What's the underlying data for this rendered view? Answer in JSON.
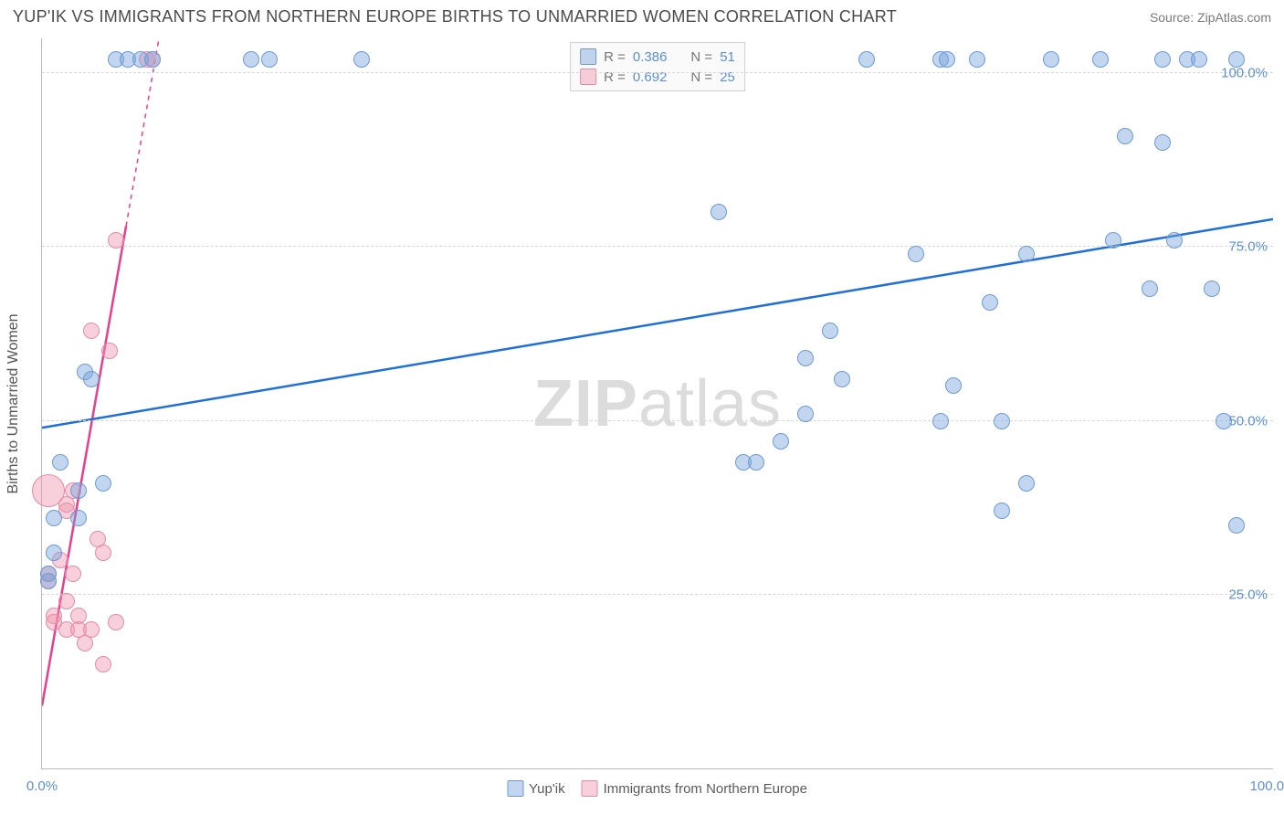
{
  "header": {
    "title": "YUP'IK VS IMMIGRANTS FROM NORTHERN EUROPE BIRTHS TO UNMARRIED WOMEN CORRELATION CHART",
    "source": "Source: ZipAtlas.com"
  },
  "chart": {
    "type": "scatter-with-trendlines",
    "ylabel": "Births to Unmarried Women",
    "watermark_left": "ZIP",
    "watermark_right": "atlas",
    "background_color": "#ffffff",
    "grid_color": "#d8d8d8",
    "axis_color": "#b9b9b9",
    "tick_color": "#5b8fd6",
    "xlim": [
      0,
      100
    ],
    "ylim": [
      0,
      105
    ],
    "xticks": [
      {
        "value": 0,
        "label": "0.0%"
      },
      {
        "value": 100,
        "label": "100.0%"
      }
    ],
    "yticks": [
      {
        "value": 25,
        "label": "25.0%"
      },
      {
        "value": 50,
        "label": "50.0%"
      },
      {
        "value": 75,
        "label": "75.0%"
      },
      {
        "value": 100,
        "label": "100.0%"
      }
    ],
    "legend_top": {
      "series1": {
        "r_label": "R =",
        "r": "0.386",
        "n_label": "N =",
        "n": "51"
      },
      "series2": {
        "r_label": "R =",
        "r": "0.692",
        "n_label": "N =",
        "n": "25"
      }
    },
    "legend_bottom": {
      "s1": "Yup'ik",
      "s2": "Immigrants from Northern Europe"
    },
    "series": {
      "blue": {
        "fill": "rgba(120,165,220,0.45)",
        "stroke": "#6d9ad4",
        "trend_color": "#1e6fd9",
        "trend_width": 2.5,
        "trend": {
          "x1": 0,
          "y1": 49,
          "x2": 100,
          "y2": 79
        },
        "marker_radius": 9,
        "points": [
          {
            "x": 0.5,
            "y": 27
          },
          {
            "x": 0.5,
            "y": 28
          },
          {
            "x": 1,
            "y": 31
          },
          {
            "x": 1,
            "y": 36
          },
          {
            "x": 1.5,
            "y": 44
          },
          {
            "x": 3,
            "y": 36
          },
          {
            "x": 3,
            "y": 40
          },
          {
            "x": 3.5,
            "y": 57
          },
          {
            "x": 4,
            "y": 56
          },
          {
            "x": 5,
            "y": 41
          },
          {
            "x": 6,
            "y": 102
          },
          {
            "x": 7,
            "y": 102
          },
          {
            "x": 8,
            "y": 102
          },
          {
            "x": 9,
            "y": 102
          },
          {
            "x": 17,
            "y": 102
          },
          {
            "x": 18.5,
            "y": 102
          },
          {
            "x": 26,
            "y": 102
          },
          {
            "x": 55,
            "y": 80
          },
          {
            "x": 57,
            "y": 44
          },
          {
            "x": 58,
            "y": 44
          },
          {
            "x": 60,
            "y": 47
          },
          {
            "x": 62,
            "y": 59
          },
          {
            "x": 62,
            "y": 51
          },
          {
            "x": 64,
            "y": 63
          },
          {
            "x": 65,
            "y": 56
          },
          {
            "x": 67,
            "y": 102
          },
          {
            "x": 73,
            "y": 102
          },
          {
            "x": 73.5,
            "y": 102
          },
          {
            "x": 71,
            "y": 74
          },
          {
            "x": 73,
            "y": 50
          },
          {
            "x": 74,
            "y": 55
          },
          {
            "x": 76,
            "y": 102
          },
          {
            "x": 77,
            "y": 67
          },
          {
            "x": 78,
            "y": 50
          },
          {
            "x": 78,
            "y": 37
          },
          {
            "x": 80,
            "y": 74
          },
          {
            "x": 80,
            "y": 41
          },
          {
            "x": 82,
            "y": 102
          },
          {
            "x": 86,
            "y": 102
          },
          {
            "x": 87,
            "y": 76
          },
          {
            "x": 88,
            "y": 91
          },
          {
            "x": 90,
            "y": 69
          },
          {
            "x": 91,
            "y": 90
          },
          {
            "x": 91,
            "y": 102
          },
          {
            "x": 92,
            "y": 76
          },
          {
            "x": 93,
            "y": 102
          },
          {
            "x": 94,
            "y": 102
          },
          {
            "x": 95,
            "y": 69
          },
          {
            "x": 96,
            "y": 50
          },
          {
            "x": 97,
            "y": 102
          },
          {
            "x": 97,
            "y": 35
          }
        ]
      },
      "pink": {
        "fill": "rgba(240,150,175,0.45)",
        "stroke": "#e68aa5",
        "trend_color": "#e83e8c",
        "trend_width": 2.5,
        "trend": {
          "x1": 0,
          "y1": 9,
          "x2": 9.5,
          "y2": 105
        },
        "marker_radius": 9,
        "points": [
          {
            "x": 0.5,
            "y": 28
          },
          {
            "x": 0.5,
            "y": 27
          },
          {
            "x": 0.5,
            "y": 40,
            "r": 18
          },
          {
            "x": 1,
            "y": 22
          },
          {
            "x": 1,
            "y": 21
          },
          {
            "x": 1.5,
            "y": 30
          },
          {
            "x": 2,
            "y": 24
          },
          {
            "x": 2,
            "y": 20
          },
          {
            "x": 2,
            "y": 38
          },
          {
            "x": 2,
            "y": 37
          },
          {
            "x": 2.5,
            "y": 40
          },
          {
            "x": 2.5,
            "y": 28
          },
          {
            "x": 3,
            "y": 22
          },
          {
            "x": 3,
            "y": 20
          },
          {
            "x": 3.5,
            "y": 18
          },
          {
            "x": 4,
            "y": 20
          },
          {
            "x": 4,
            "y": 63
          },
          {
            "x": 4.5,
            "y": 33
          },
          {
            "x": 5,
            "y": 31
          },
          {
            "x": 5,
            "y": 15
          },
          {
            "x": 5.5,
            "y": 60
          },
          {
            "x": 6,
            "y": 21
          },
          {
            "x": 6,
            "y": 76
          },
          {
            "x": 8.5,
            "y": 102
          },
          {
            "x": 9,
            "y": 102
          }
        ]
      }
    }
  }
}
